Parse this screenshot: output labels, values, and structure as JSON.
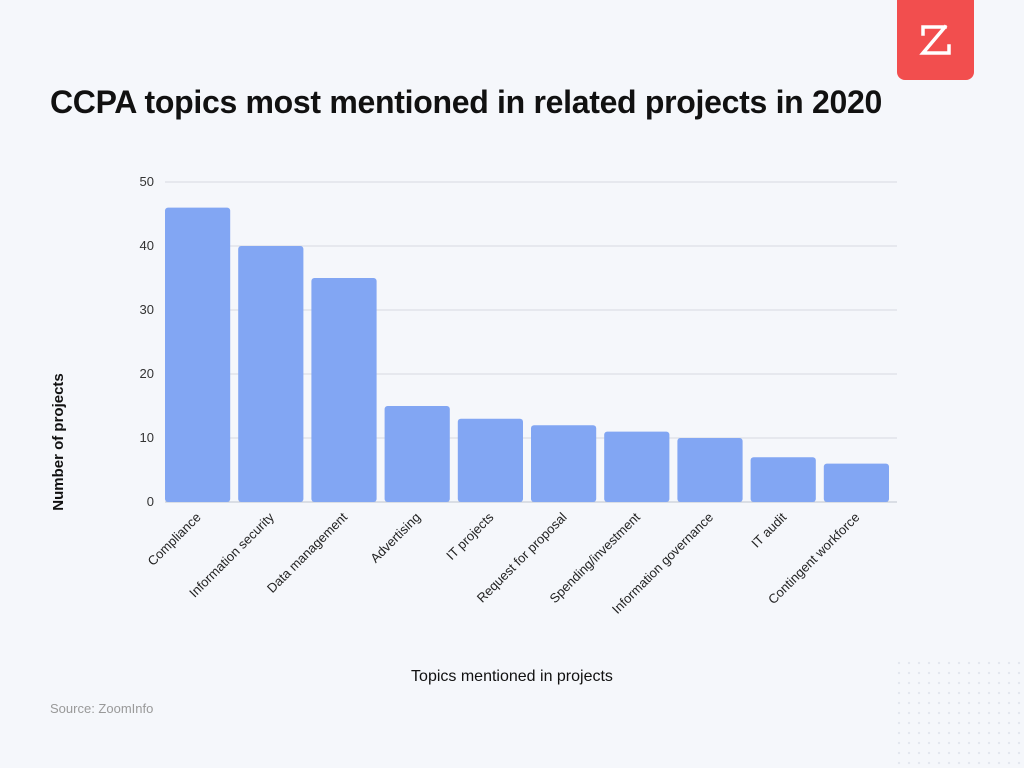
{
  "brand": {
    "accent": "#f24e4e",
    "logo_icon": "zoominfo-z-icon"
  },
  "source": "Source: ZoomInfo",
  "chart_data": {
    "type": "bar",
    "title": "CCPA topics most mentioned in related projects in 2020",
    "xlabel": "Topics mentioned in projects",
    "ylabel": "Number of projects",
    "categories": [
      "Compliance",
      "Information security",
      "Data management",
      "Advertising",
      "IT projects",
      "Request for proposal",
      "Spending/investment",
      "Information governance",
      "IT audit",
      "Contingent workforce"
    ],
    "values": [
      46,
      40,
      35,
      15,
      13,
      12,
      11,
      10,
      7,
      6
    ],
    "yticks": [
      0,
      10,
      20,
      30,
      40,
      50
    ],
    "ylim": [
      0,
      50
    ],
    "grid": true,
    "bar_color": "#82a6f3"
  }
}
